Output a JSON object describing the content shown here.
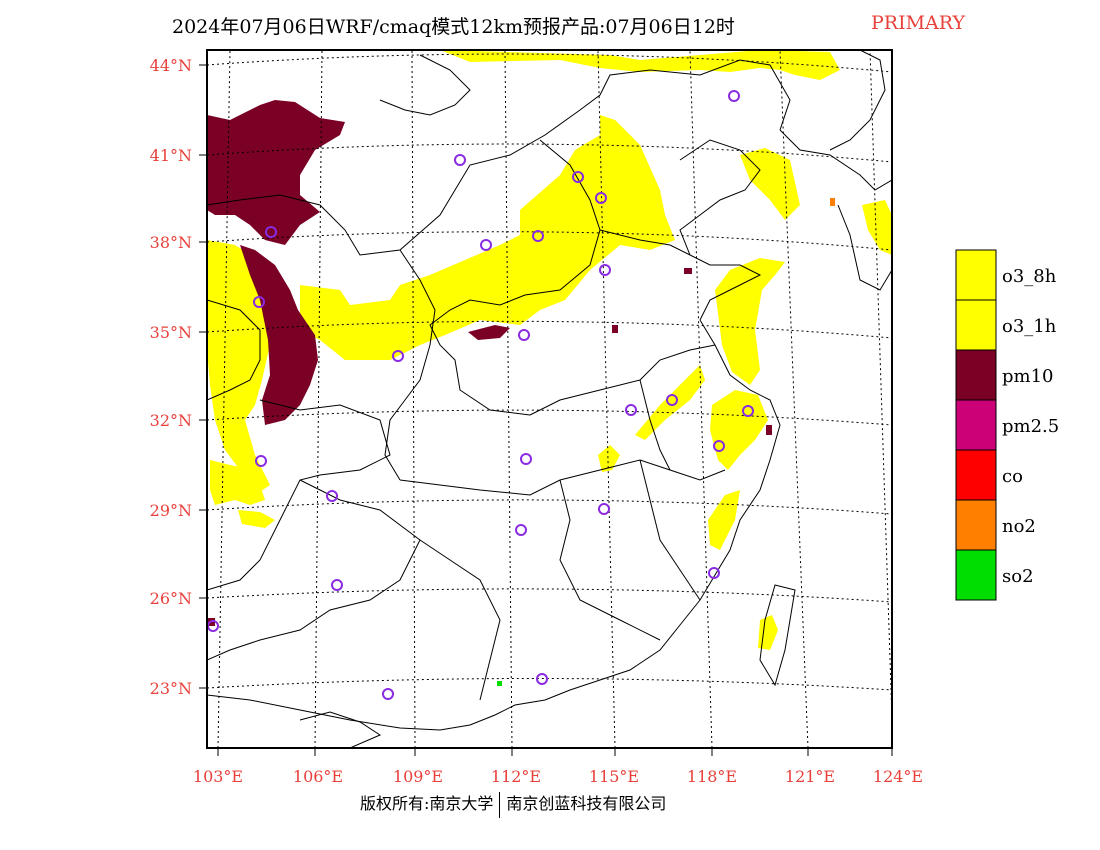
{
  "title": {
    "main": "2024年07月06日WRF/cmaq模式12km预报产品:07月06日12时",
    "tag": "PRIMARY"
  },
  "axes": {
    "lat_labels": [
      "44°N",
      "41°N",
      "38°N",
      "35°N",
      "32°N",
      "29°N",
      "26°N",
      "23°N"
    ],
    "lon_labels": [
      "103°E",
      "106°E",
      "109°E",
      "112°E",
      "115°E",
      "118°E",
      "121°E",
      "124°E"
    ]
  },
  "legend": {
    "items": [
      {
        "label": "o3_8h",
        "color": "#ffff00"
      },
      {
        "label": "o3_1h",
        "color": "#ffff00"
      },
      {
        "label": "pm10",
        "color": "#7a0026"
      },
      {
        "label": "pm2.5",
        "color": "#cc0077"
      },
      {
        "label": "co",
        "color": "#ff0000"
      },
      {
        "label": "no2",
        "color": "#ff7f00"
      },
      {
        "label": "so2",
        "color": "#00dd00"
      }
    ]
  },
  "footer": {
    "copyright": "版权所有:南京大学",
    "company": "南京创蓝科技有限公司"
  },
  "colors": {
    "o3": "#ffff00",
    "pm10": "#7a0026",
    "station_marker": "#8a2be2",
    "tick_labels": "#e8403a"
  }
}
